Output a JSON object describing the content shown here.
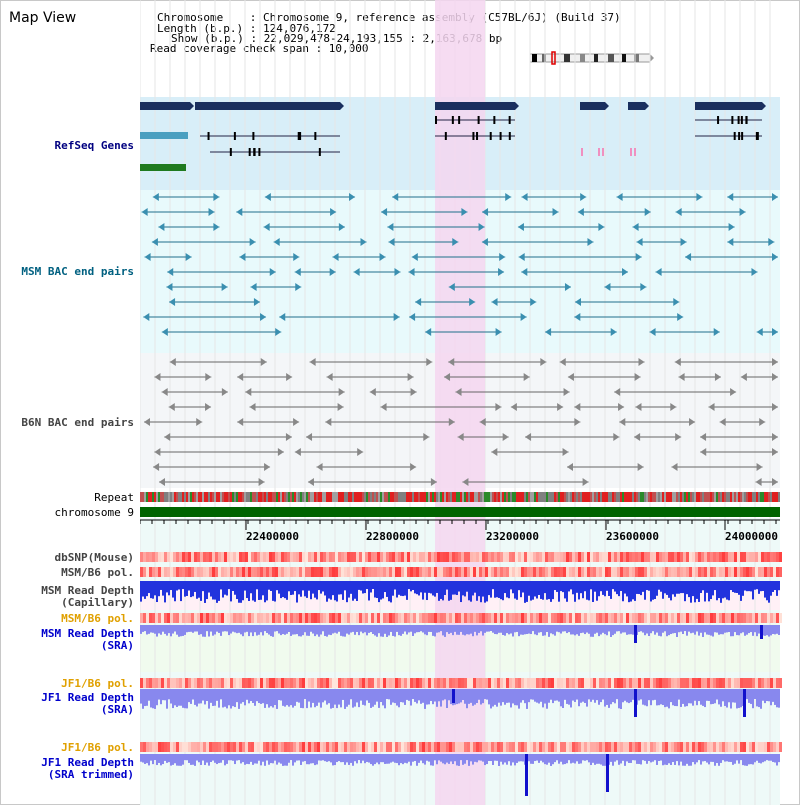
{
  "title": "Map View",
  "info": {
    "chromosome_line": "Chromosome    : Chromosome 9, reference assembly (C57BL/6J) (Build 37)",
    "length_line": "Length (b.p.) : 124,076,172",
    "show_line": "Show (b.p.) : 22,029,478-24,193,155 : 2,163,678 bp",
    "coverage_line": "Read coverage check span : 10,000"
  },
  "tracks": {
    "refseq": "RefSeq Genes",
    "msm_bac": "MSM BAC end pairs",
    "b6n_bac": "B6N BAC end pairs",
    "repeat": "Repeat",
    "chromosome": "chromosome 9",
    "dbsnp": "dbSNP(Mouse)",
    "msm_b6_pol_1": "MSM/B6 pol.",
    "msm_depth_cap_1": "MSM Read Depth",
    "msm_depth_cap_2": "(Capillary)",
    "msm_b6_pol_2": "MSM/B6 pol.",
    "msm_depth_sra_1": "MSM Read Depth",
    "msm_depth_sra_2": "(SRA)",
    "jf1_b6_pol_1": "JF1/B6 pol.",
    "jf1_depth_sra_1": "JF1 Read Depth",
    "jf1_depth_sra_2": "(SRA)",
    "jf1_b6_pol_2": "JF1/B6 pol.",
    "jf1_depth_trim_1": "JF1 Read Depth",
    "jf1_depth_trim_2": "(SRA trimmed)"
  },
  "axis": {
    "ticks": [
      "22400000",
      "22800000",
      "23200000",
      "23600000",
      "24000000"
    ]
  },
  "colors": {
    "navy": "#1a2f5e",
    "refseq_bg": "#d8eef8",
    "msm_bg": "#e8fafc",
    "highlight": "#f5d6f0",
    "chrom": "#006400",
    "depth_blue": "#2233dd",
    "sra_blue": "#8888ee"
  }
}
